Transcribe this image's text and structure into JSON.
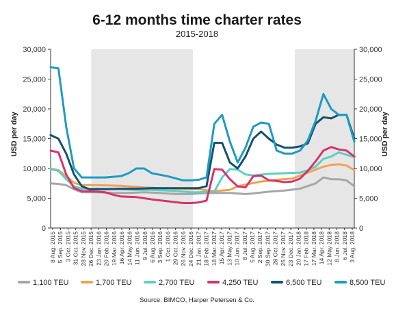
{
  "chart_data": {
    "type": "line",
    "title": "6-12 months time charter rates",
    "subtitle": "2015-2018",
    "ylabel": "USD per day",
    "ylabel_right": "USD per day",
    "ylim": [
      0,
      30000
    ],
    "yticks": [
      "0",
      "5,000",
      "10,000",
      "15,000",
      "20,000",
      "25,000",
      "30,000"
    ],
    "ytick_values": [
      0,
      5000,
      10000,
      15000,
      20000,
      25000,
      30000
    ],
    "x_start": "2015-08-08",
    "x_end": "2018-08-03",
    "x_tick_labels": [
      "8 Aug. 2015",
      "5 Sep. 2015",
      "3 Oct. 2015",
      "31 Oct. 2015",
      "28 Nov. 2015",
      "26 Dec. 2015",
      "23 Jan. 2016",
      "20 Feb. 2016",
      "19 Mar. 2016",
      "16 Apr. 2016",
      "14 May 2016",
      "11 Jun. 2016",
      "9 Jul. 2016",
      "6 Aug. 2016",
      "3 Sep. 2016",
      "1 Oct. 2016",
      "29 Oct. 2016",
      "26 Nov. 2016",
      "24 Dec. 2016",
      "21 Jan. 2017",
      "18 Feb. 2017",
      "18 Mar. 2017",
      "15 Apr. 2017",
      "13 May 2017",
      "10 Jun. 2017",
      "8 Jul. 2017",
      "5 Aug. 2017",
      "2 Sep. 2017",
      "30 Sep. 2017",
      "28 Oct. 2017",
      "25 Nov. 2017",
      "23 Dec. 2017",
      "20 Jan. 2018",
      "17 Feb. 2018",
      "17 Mar. 2018",
      "14 Apr. 2018",
      "12 May 2018",
      "8 Jun. 2018",
      "6 Jul. 2018",
      "3 Aug. 2018"
    ],
    "shaded_years": [
      [
        "2016-01-01",
        "2016-12-31"
      ],
      [
        "2018-01-01",
        "2018-08-03"
      ]
    ],
    "grid": false,
    "legend_position": "bottom",
    "series": [
      {
        "name": "1,100 TEU",
        "color": "#a6a6a6",
        "points": [
          [
            "2015-08-08",
            7500
          ],
          [
            "2015-09-05",
            7400
          ],
          [
            "2015-10-03",
            7200
          ],
          [
            "2015-10-31",
            6500
          ],
          [
            "2015-11-28",
            6000
          ],
          [
            "2016-01-23",
            6000
          ],
          [
            "2016-03-19",
            5900
          ],
          [
            "2016-05-14",
            5900
          ],
          [
            "2016-07-09",
            6000
          ],
          [
            "2016-09-03",
            5900
          ],
          [
            "2016-10-29",
            5700
          ],
          [
            "2016-12-24",
            5700
          ],
          [
            "2017-01-21",
            5800
          ],
          [
            "2017-03-18",
            5900
          ],
          [
            "2017-05-13",
            5900
          ],
          [
            "2017-07-08",
            5700
          ],
          [
            "2017-08-05",
            5800
          ],
          [
            "2017-09-30",
            6100
          ],
          [
            "2017-11-25",
            6300
          ],
          [
            "2018-01-20",
            6600
          ],
          [
            "2018-03-17",
            7500
          ],
          [
            "2018-04-14",
            8500
          ],
          [
            "2018-05-12",
            8200
          ],
          [
            "2018-06-08",
            8200
          ],
          [
            "2018-07-06",
            8000
          ],
          [
            "2018-08-03",
            7000
          ]
        ]
      },
      {
        "name": "1,700 TEU",
        "color": "#f2a154",
        "points": [
          [
            "2015-08-08",
            10000
          ],
          [
            "2015-09-05",
            9700
          ],
          [
            "2015-10-03",
            8700
          ],
          [
            "2015-10-31",
            7600
          ],
          [
            "2015-11-28",
            7200
          ],
          [
            "2016-01-23",
            7200
          ],
          [
            "2016-04-16",
            7100
          ],
          [
            "2016-05-14",
            7000
          ],
          [
            "2016-07-09",
            6800
          ],
          [
            "2016-09-03",
            6700
          ],
          [
            "2016-10-29",
            6600
          ],
          [
            "2016-12-24",
            6500
          ],
          [
            "2017-01-21",
            6500
          ],
          [
            "2017-03-18",
            6200
          ],
          [
            "2017-05-13",
            6400
          ],
          [
            "2017-06-10",
            7000
          ],
          [
            "2017-07-08",
            7300
          ],
          [
            "2017-09-02",
            7800
          ],
          [
            "2017-10-28",
            8100
          ],
          [
            "2017-12-23",
            8300
          ],
          [
            "2018-01-20",
            8800
          ],
          [
            "2018-03-17",
            9800
          ],
          [
            "2018-04-14",
            10300
          ],
          [
            "2018-05-12",
            10600
          ],
          [
            "2018-06-08",
            10700
          ],
          [
            "2018-07-06",
            10500
          ],
          [
            "2018-08-03",
            9700
          ]
        ]
      },
      {
        "name": "2,700 TEU",
        "color": "#5ccfc6",
        "points": [
          [
            "2015-08-08",
            9900
          ],
          [
            "2015-09-05",
            9600
          ],
          [
            "2015-10-03",
            8200
          ],
          [
            "2015-10-31",
            7000
          ],
          [
            "2015-11-28",
            6600
          ],
          [
            "2016-01-23",
            6600
          ],
          [
            "2016-04-16",
            6500
          ],
          [
            "2016-06-11",
            6400
          ],
          [
            "2016-08-06",
            6400
          ],
          [
            "2016-10-01",
            6300
          ],
          [
            "2016-11-26",
            6100
          ],
          [
            "2016-12-24",
            6000
          ],
          [
            "2017-01-21",
            6000
          ],
          [
            "2017-03-18",
            6100
          ],
          [
            "2017-04-15",
            8500
          ],
          [
            "2017-05-13",
            9900
          ],
          [
            "2017-06-10",
            9800
          ],
          [
            "2017-07-08",
            9000
          ],
          [
            "2017-08-05",
            8800
          ],
          [
            "2017-09-30",
            9100
          ],
          [
            "2017-11-25",
            9200
          ],
          [
            "2018-01-20",
            9300
          ],
          [
            "2018-02-17",
            9700
          ],
          [
            "2018-03-17",
            10300
          ],
          [
            "2018-04-14",
            11600
          ],
          [
            "2018-05-12",
            12000
          ],
          [
            "2018-06-08",
            12700
          ],
          [
            "2018-07-06",
            12300
          ],
          [
            "2018-08-03",
            11900
          ]
        ]
      },
      {
        "name": "4,250 TEU",
        "color": "#d6336c",
        "points": [
          [
            "2015-08-08",
            13000
          ],
          [
            "2015-09-05",
            12700
          ],
          [
            "2015-10-03",
            9000
          ],
          [
            "2015-10-31",
            6700
          ],
          [
            "2015-11-28",
            6200
          ],
          [
            "2016-01-23",
            6100
          ],
          [
            "2016-02-20",
            6000
          ],
          [
            "2016-03-19",
            5600
          ],
          [
            "2016-04-16",
            5300
          ],
          [
            "2016-06-11",
            5200
          ],
          [
            "2016-08-06",
            4800
          ],
          [
            "2016-10-01",
            4500
          ],
          [
            "2016-11-26",
            4200
          ],
          [
            "2016-12-24",
            4200
          ],
          [
            "2017-01-21",
            4300
          ],
          [
            "2017-02-18",
            4600
          ],
          [
            "2017-03-18",
            9900
          ],
          [
            "2017-04-15",
            9800
          ],
          [
            "2017-05-13",
            8200
          ],
          [
            "2017-06-10",
            7000
          ],
          [
            "2017-07-08",
            6800
          ],
          [
            "2017-08-05",
            8700
          ],
          [
            "2017-09-02",
            8800
          ],
          [
            "2017-09-30",
            8000
          ],
          [
            "2017-10-28",
            7900
          ],
          [
            "2017-11-25",
            7700
          ],
          [
            "2017-12-23",
            7800
          ],
          [
            "2018-01-20",
            8300
          ],
          [
            "2018-02-17",
            9600
          ],
          [
            "2018-03-17",
            11200
          ],
          [
            "2018-04-14",
            13000
          ],
          [
            "2018-05-12",
            13600
          ],
          [
            "2018-06-08",
            13200
          ],
          [
            "2018-07-06",
            13000
          ],
          [
            "2018-08-03",
            12000
          ]
        ]
      },
      {
        "name": "6,500 TEU",
        "color": "#15506e",
        "points": [
          [
            "2015-08-08",
            15600
          ],
          [
            "2015-09-05",
            15000
          ],
          [
            "2015-10-03",
            12500
          ],
          [
            "2015-10-31",
            9000
          ],
          [
            "2015-11-28",
            7000
          ],
          [
            "2015-12-26",
            6500
          ],
          [
            "2016-02-20",
            6500
          ],
          [
            "2016-04-16",
            6600
          ],
          [
            "2016-06-11",
            6600
          ],
          [
            "2016-08-06",
            6700
          ],
          [
            "2016-10-01",
            6700
          ],
          [
            "2016-11-26",
            6700
          ],
          [
            "2016-12-24",
            6700
          ],
          [
            "2017-01-21",
            6700
          ],
          [
            "2017-02-18",
            7000
          ],
          [
            "2017-03-18",
            14300
          ],
          [
            "2017-04-15",
            14300
          ],
          [
            "2017-05-13",
            11000
          ],
          [
            "2017-06-10",
            10000
          ],
          [
            "2017-07-08",
            12000
          ],
          [
            "2017-08-05",
            15000
          ],
          [
            "2017-09-02",
            16200
          ],
          [
            "2017-09-30",
            15000
          ],
          [
            "2017-10-28",
            14000
          ],
          [
            "2017-11-25",
            13500
          ],
          [
            "2017-12-23",
            13500
          ],
          [
            "2018-01-20",
            13700
          ],
          [
            "2018-02-17",
            14200
          ],
          [
            "2018-03-17",
            17500
          ],
          [
            "2018-04-14",
            18600
          ],
          [
            "2018-05-12",
            18400
          ],
          [
            "2018-06-08",
            19000
          ],
          [
            "2018-07-06",
            19000
          ],
          [
            "2018-08-03",
            15000
          ]
        ]
      },
      {
        "name": "8,500 TEU",
        "color": "#1d9bc1",
        "points": [
          [
            "2015-08-08",
            27000
          ],
          [
            "2015-09-05",
            26800
          ],
          [
            "2015-10-03",
            17000
          ],
          [
            "2015-10-31",
            10000
          ],
          [
            "2015-11-28",
            8500
          ],
          [
            "2016-02-20",
            8500
          ],
          [
            "2016-04-16",
            8700
          ],
          [
            "2016-05-14",
            9200
          ],
          [
            "2016-06-11",
            10000
          ],
          [
            "2016-07-09",
            10000
          ],
          [
            "2016-08-06",
            9200
          ],
          [
            "2016-10-01",
            8700
          ],
          [
            "2016-11-26",
            8000
          ],
          [
            "2016-12-24",
            8000
          ],
          [
            "2017-01-21",
            8100
          ],
          [
            "2017-02-18",
            8500
          ],
          [
            "2017-03-18",
            17500
          ],
          [
            "2017-04-15",
            19000
          ],
          [
            "2017-05-13",
            14500
          ],
          [
            "2017-06-10",
            11000
          ],
          [
            "2017-07-08",
            13500
          ],
          [
            "2017-08-05",
            17000
          ],
          [
            "2017-09-02",
            17700
          ],
          [
            "2017-09-30",
            17500
          ],
          [
            "2017-10-28",
            13000
          ],
          [
            "2017-11-25",
            12500
          ],
          [
            "2017-12-23",
            12500
          ],
          [
            "2018-01-20",
            13000
          ],
          [
            "2018-02-17",
            14700
          ],
          [
            "2018-03-17",
            18000
          ],
          [
            "2018-04-14",
            22500
          ],
          [
            "2018-05-12",
            20000
          ],
          [
            "2018-06-08",
            19000
          ],
          [
            "2018-07-06",
            19000
          ],
          [
            "2018-08-03",
            14500
          ]
        ]
      }
    ],
    "source": "Source: BIMCO, Harper Petersen & Co."
  }
}
